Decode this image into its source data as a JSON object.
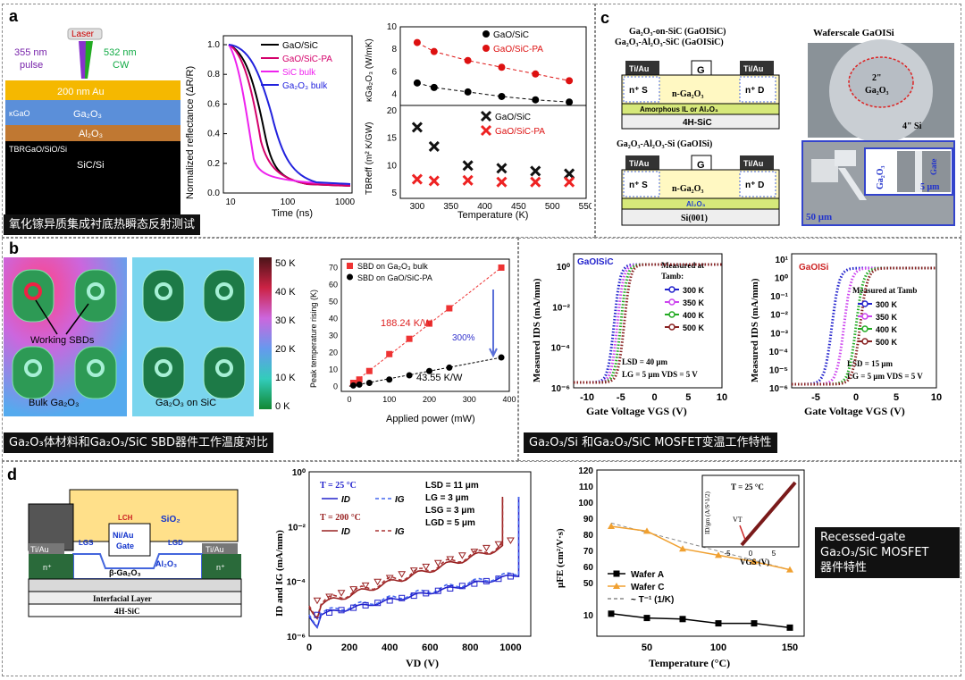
{
  "labels": {
    "a": "a",
    "b": "b",
    "c": "c",
    "d": "d"
  },
  "captions": {
    "a": "氧化镓异质集成衬底热瞬态反射测试",
    "b": "Ga₂O₃体材料和Ga₂O₃/SiC SBD器件工作温度对比",
    "c": "Ga₂O₃/Si 和Ga₂O₃/SiC MOSFET变温工作特性",
    "d1": "Recessed-gate",
    "d2": "Ga₂O₃/SiC MOSFET",
    "d3": "器件特性"
  },
  "a_schem": {
    "laser": "Laser",
    "l355a": "355 nm",
    "l355b": "pulse",
    "l532a": "532 nm",
    "l532b": "CW",
    "au": "200 nm Au",
    "kgao": "κGaO",
    "ga2o3": "Ga₂O₃",
    "al2o3": "Al₂O₃",
    "tbr": "TBRGaO/SiO/Si",
    "sicsi": "SiC/Si"
  },
  "a_refl": {
    "ylabel": "Normalized reflectance (ΔR/R)",
    "xlabel": "Time (ns)",
    "yticks": [
      "0.0",
      "0.2",
      "0.4",
      "0.6",
      "0.8",
      "1.0"
    ],
    "xticks": [
      "10",
      "100",
      "1000"
    ],
    "legend": [
      "GaO/SiC",
      "GaO/SiC-PA",
      "SiC bulk",
      "Ga₂O₃ bulk"
    ],
    "colors": [
      "#000000",
      "#d4006a",
      "#ee22ee",
      "#2222dd"
    ]
  },
  "a_k": {
    "ylabel": "κGa₂O₃ (W/mK)",
    "yticks": [
      "4",
      "6",
      "8",
      "10"
    ],
    "legend": [
      "GaO/SiC",
      "GaO/SiC-PA"
    ],
    "x": [
      300,
      325,
      375,
      425,
      475,
      525
    ],
    "sic": [
      5.0,
      4.6,
      4.2,
      3.8,
      3.5,
      3.3
    ],
    "pa": [
      8.6,
      7.8,
      7.0,
      6.4,
      5.8,
      5.2
    ]
  },
  "a_tbr": {
    "ylabel": "TBReff (m² K/GW)",
    "xlabel": "Temperature (K)",
    "yticks": [
      "5",
      "10",
      "15",
      "20"
    ],
    "xticks": [
      "300",
      "350",
      "400",
      "450",
      "500",
      "550"
    ],
    "legend": [
      "GaO/SiC",
      "GaO/SiC-PA"
    ],
    "sic": [
      17.0,
      13.5,
      10.0,
      9.5,
      9.0,
      8.5
    ],
    "pa": [
      7.5,
      7.2,
      7.3,
      7.0,
      7.0,
      7.0
    ]
  },
  "b_maps": {
    "working": "Working SBDs",
    "bulk": "Bulk Ga₂O₃",
    "onsic": "Ga₂O₃ on SiC",
    "scale": [
      "50 K",
      "40 K",
      "30 K",
      "20 K",
      "10 K",
      "0 K"
    ]
  },
  "b_plot": {
    "ylabel": "Peak temperature rising (K)",
    "xlabel": "Applied power (mW)",
    "yticks": [
      "0",
      "10",
      "20",
      "30",
      "40",
      "50",
      "60",
      "70"
    ],
    "xticks": [
      "0",
      "100",
      "200",
      "300",
      "400"
    ],
    "legend": [
      "SBD on Ga₂O₃ bulk",
      "SBD on GaO/SiC-PA"
    ],
    "ann1": "188.24 K/W",
    "ann2": "43.55 K/W",
    "ann3": "300%",
    "x": [
      10,
      25,
      50,
      100,
      150,
      200,
      250,
      380
    ],
    "bulk": [
      2,
      4,
      9,
      19,
      28,
      37,
      46,
      70
    ],
    "pa": [
      0.5,
      1,
      2,
      4,
      6.5,
      9,
      11,
      17
    ]
  },
  "c_top": {
    "t1": "Ga₂O₃-on-SiC (GaOISiC)",
    "t2": "Ga₂O₃-Al₂O₃-SiC (GaOISiC)",
    "t3": "Waferscale GaOISi",
    "tiau": "Ti/Au",
    "g": "G",
    "ns": "n⁺ S",
    "nd": "n⁺ D",
    "nga": "n-Ga₂O₃",
    "amorph": "Amorphous IL or Al₂O₃",
    "sic": "4H-SiC",
    "w2": "2\"",
    "wga": "Ga₂O₃",
    "w4": "4\" Si"
  },
  "c_bot": {
    "t1": "Ga₂O₃-Al₂O₃-Si (GaOISi)",
    "al": "Al₂O₃",
    "si": "Si(001)",
    "gate": "Gate",
    "ga": "Ga₂O₃",
    "s5": "5 μm",
    "s50": "50 μm"
  },
  "c_left": {
    "title": "GaOISiC",
    "ylabel": "Measured IDS (mA/mm)",
    "xlabel": "Gate Voltage VGS (V)",
    "yticks": [
      "10⁻⁶",
      "10⁻⁴",
      "10⁻²",
      "10⁰"
    ],
    "xticks": [
      "-10",
      "-5",
      "0",
      "5",
      "10"
    ],
    "meas1": "Measured at",
    "meas2": "Tamb:",
    "legend": [
      "300 K",
      "350 K",
      "400 K",
      "500 K"
    ],
    "p1": "LSD = 40 μm",
    "p2": "LG = 5 μm VDS = 5 V"
  },
  "c_right": {
    "title": "GaOISi",
    "ylabel": "Measured IDS (mA/mm)",
    "xlabel": "Gate Voltage VGS (V)",
    "yticks": [
      "10⁻⁶",
      "10⁻⁵",
      "10⁻⁴",
      "10⁻³",
      "10⁻²",
      "10⁻¹",
      "10⁰",
      "10¹"
    ],
    "xticks": [
      "-5",
      "0",
      "5",
      "10"
    ],
    "meas1": "Measured at Tamb",
    "legend": [
      "300 K",
      "350 K",
      "400 K",
      "500 K"
    ],
    "p1": "LSD = 15 μm",
    "p2": "LG = 5 μm VDS = 5 V"
  },
  "cm_colors": [
    "#2222cc",
    "#cc44ee",
    "#22aa22",
    "#882222"
  ],
  "d_schem": {
    "sio2": "SiO₂",
    "tiau1": "Ti/Au",
    "tiau2": "Ti/Au",
    "lch": "LCH",
    "lgs": "LGS",
    "lgd": "LGD",
    "gate1": "Ni/Au",
    "gate2": "Gate",
    "al2o3": "Al₂O₃",
    "n1": "n⁺",
    "n2": "n⁺",
    "bga": "β-Ga₂O₃",
    "il": "Interfacial Layer",
    "sic": "4H-SiC"
  },
  "d_iv": {
    "t1": "T = 25 °C",
    "t2": "T = 200 °C",
    "id": "ID",
    "ig": "IG",
    "p": [
      "LSD = 11 μm",
      "LG = 3 μm",
      "LSG = 3 μm",
      "LGD = 5 μm"
    ],
    "ylabel": "ID and IG (mA/mm)",
    "xlabel": "VD (V)",
    "yticks": [
      "10⁻⁶",
      "10⁻⁴",
      "10⁻²",
      "10⁰"
    ],
    "xticks": [
      "0",
      "200",
      "400",
      "600",
      "800",
      "1000"
    ]
  },
  "d_mu": {
    "ylabel": "μFE (cm²/V·s)",
    "xlabel": "Temperature (°C)",
    "yticks": [
      "10",
      "50",
      "60",
      "70",
      "80",
      "90",
      "100",
      "110",
      "120"
    ],
    "xticks": [
      "50",
      "100",
      "150"
    ],
    "legend": [
      "Wafer A",
      "Wafer C",
      "~ T⁻¹ (1/K)"
    ],
    "x": [
      25,
      50,
      75,
      100,
      125,
      150
    ],
    "c": [
      85,
      82,
      71,
      67,
      63,
      58
    ],
    "a": [
      10.5,
      8.5,
      8.0,
      6.0,
      6.0,
      4.0
    ],
    "inset_t": "T = 25 °C",
    "inset_y": "ID/gm (A/S^1/2)",
    "inset_x": "VGS (V)",
    "inset_xt": [
      "-5",
      "0",
      "5"
    ],
    "inset_vt": "VT"
  }
}
